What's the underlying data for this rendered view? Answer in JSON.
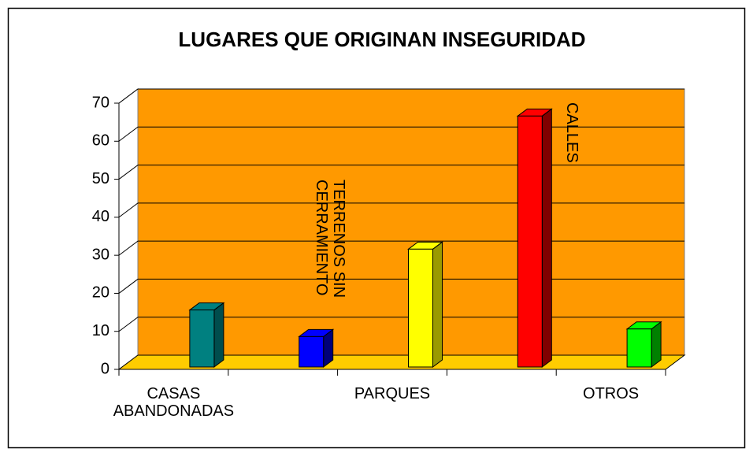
{
  "chart_data": {
    "type": "bar3d",
    "title": "LUGARES QUE ORIGINAN INSEGURIDAD",
    "categories": [
      "CASAS ABANDONADAS",
      "TERRENOS SIN CERRAMIENTO",
      "PARQUES",
      "CALLES",
      "OTROS"
    ],
    "values": [
      15,
      8,
      31,
      66,
      10
    ],
    "colors": [
      "#008080",
      "#0000ff",
      "#ffff00",
      "#ff0000",
      "#00ff00"
    ],
    "side_colors": [
      "#004d4d",
      "#00007a",
      "#9a9a00",
      "#800000",
      "#008000"
    ],
    "ylim": [
      0,
      70
    ],
    "yticks": [
      0,
      10,
      20,
      30,
      40,
      50,
      60,
      70
    ],
    "grid": true,
    "wall_color": "#ff9900",
    "floor_color": "#ffcc00"
  }
}
